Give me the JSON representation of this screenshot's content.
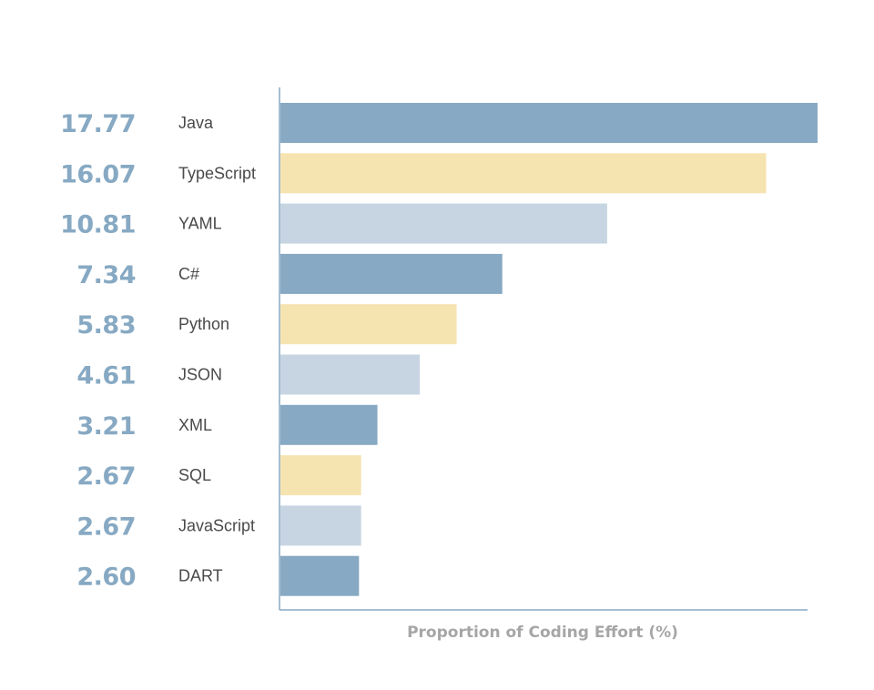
{
  "chart_data": {
    "type": "bar",
    "orientation": "horizontal",
    "categories": [
      "Java",
      "TypeScript",
      "YAML",
      "C#",
      "Python",
      "JSON",
      "XML",
      "SQL",
      "JavaScript",
      "DART"
    ],
    "values": [
      17.77,
      16.07,
      10.81,
      7.34,
      5.83,
      4.61,
      3.21,
      2.67,
      2.67,
      2.6
    ],
    "value_labels": [
      "17.77",
      "16.07",
      "10.81",
      "7.34",
      "5.83",
      "4.61",
      "3.21",
      "2.67",
      "2.67",
      "2.60"
    ],
    "title": "",
    "xlabel": "Proportion of Coding Effort (%)",
    "ylabel": "",
    "xlim": [
      0,
      17.77
    ],
    "grid": false,
    "bar_colors": [
      "#87a9c3",
      "#f5e3b0",
      "#c7d5e2"
    ],
    "value_label_color": "#87a9c3",
    "axis_color": "#87a9c3"
  }
}
